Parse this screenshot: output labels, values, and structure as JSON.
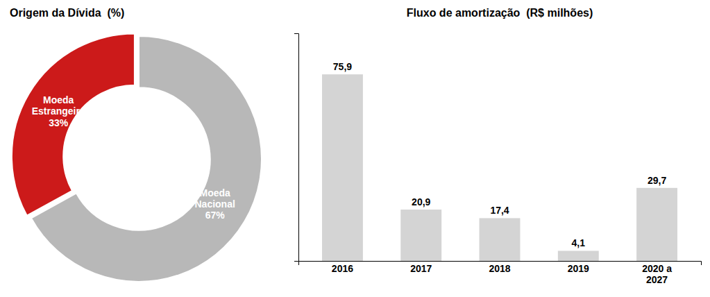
{
  "chart_data": [
    {
      "type": "pie",
      "title": "Origem da Dívida  (%)",
      "categories": [
        "Moeda\nEstrangeira",
        "Moeda\nNacional"
      ],
      "values": [
        33,
        67
      ],
      "value_labels": [
        "33%",
        "67%"
      ],
      "colors": [
        "#cc1a1a",
        "#b8b8b8"
      ],
      "data_labels": true
    },
    {
      "type": "bar",
      "title": "Fluxo de amortização  (R$ milhões)",
      "categories": [
        "2016",
        "2017",
        "2018",
        "2019",
        "2020 a\n2027"
      ],
      "values": [
        75.9,
        20.9,
        17.4,
        4.1,
        29.7
      ],
      "value_labels": [
        "75,9",
        "20,9",
        "17,4",
        "4,1",
        "29,7"
      ],
      "color": "#d4d4d4",
      "ylim": [
        0,
        92.598
      ],
      "yticks": [],
      "tick_labels": "x",
      "data_labels": true
    }
  ]
}
